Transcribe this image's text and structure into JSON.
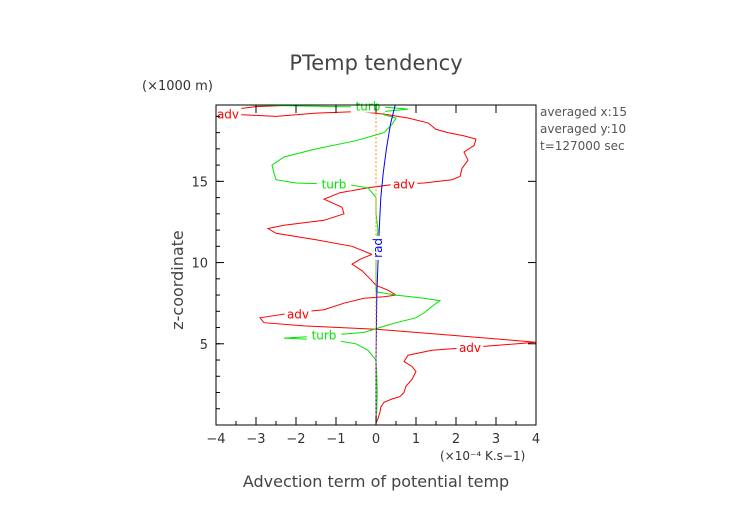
{
  "chart_data": {
    "type": "line",
    "title": "PTemp tendency",
    "y_multiplier_label": "(×1000 m)",
    "ylabel": "z-coordinate",
    "xlabel": "Advection term of potential temp",
    "x_unit_label": "(×10⁻⁴ K.s−1)",
    "xlim": [
      -4,
      4
    ],
    "ylim": [
      0,
      19.7
    ],
    "x_ticks": [
      "−4",
      "−3",
      "−2",
      "−1",
      "0",
      "1",
      "2",
      "3",
      "4"
    ],
    "y_ticks": [
      "5",
      "10",
      "15"
    ],
    "annotations": [
      "averaged  x:15",
      "averaged  y:10",
      "t=127000 sec"
    ],
    "series": [
      {
        "name": "adv",
        "color": "#ff0000",
        "labels": [
          {
            "x": -3.7,
            "y": 19.1
          },
          {
            "x": 0.7,
            "y": 14.8
          },
          {
            "x": -1.95,
            "y": 6.8
          },
          {
            "x": 2.35,
            "y": 4.75
          }
        ],
        "points": [
          [
            0,
            0.1
          ],
          [
            0.05,
            0.4
          ],
          [
            0.1,
            0.8
          ],
          [
            0.12,
            1.1
          ],
          [
            0.2,
            1.4
          ],
          [
            0.4,
            1.6
          ],
          [
            0.6,
            1.75
          ],
          [
            0.7,
            2.0
          ],
          [
            0.75,
            2.4
          ],
          [
            0.9,
            2.8
          ],
          [
            1.0,
            3.3
          ],
          [
            0.9,
            3.6
          ],
          [
            0.7,
            3.9
          ],
          [
            0.8,
            4.3
          ],
          [
            1.4,
            4.6
          ],
          [
            2.5,
            4.8
          ],
          [
            4.0,
            5.1
          ],
          [
            3.0,
            5.3
          ],
          [
            1.5,
            5.6
          ],
          [
            0,
            5.9
          ],
          [
            -1.8,
            6.1
          ],
          [
            -2.8,
            6.3
          ],
          [
            -2.9,
            6.6
          ],
          [
            -2.1,
            6.9
          ],
          [
            -1.3,
            7.1
          ],
          [
            -0.8,
            7.5
          ],
          [
            -0.3,
            7.8
          ],
          [
            0.2,
            7.9
          ],
          [
            0.5,
            8.0
          ],
          [
            0.3,
            8.3
          ],
          [
            0,
            8.6
          ],
          [
            -0.15,
            9.0
          ],
          [
            -0.35,
            9.5
          ],
          [
            -0.6,
            9.9
          ],
          [
            -0.4,
            10.2
          ],
          [
            -0.1,
            10.5
          ],
          [
            -0.6,
            11.0
          ],
          [
            -1.5,
            11.4
          ],
          [
            -2.5,
            11.8
          ],
          [
            -2.7,
            12.1
          ],
          [
            -2.3,
            12.3
          ],
          [
            -1.3,
            12.6
          ],
          [
            -0.8,
            13.0
          ],
          [
            -0.85,
            13.4
          ],
          [
            -1.3,
            13.9
          ],
          [
            -0.9,
            14.3
          ],
          [
            -0.2,
            14.6
          ],
          [
            0.4,
            14.8
          ],
          [
            1.2,
            14.9
          ],
          [
            1.9,
            15.1
          ],
          [
            2.1,
            15.3
          ],
          [
            2.15,
            15.8
          ],
          [
            2.3,
            16.3
          ],
          [
            2.2,
            16.8
          ],
          [
            2.45,
            17.2
          ],
          [
            2.5,
            17.6
          ],
          [
            2.2,
            17.8
          ],
          [
            1.8,
            18.0
          ],
          [
            1.5,
            18.2
          ],
          [
            1.3,
            18.6
          ],
          [
            0.8,
            18.9
          ],
          [
            0.3,
            19.1
          ],
          [
            -0.4,
            19.3
          ],
          [
            -1.5,
            19.2
          ],
          [
            -2.5,
            19.0
          ],
          [
            -3.35,
            19.1
          ],
          [
            -3.5,
            19.45
          ],
          [
            -3.0,
            19.6
          ],
          [
            -2.0,
            19.7
          ]
        ]
      },
      {
        "name": "turb",
        "color": "#00e600",
        "labels": [
          {
            "x": -0.2,
            "y": 19.6
          },
          {
            "x": -1.05,
            "y": 14.8
          },
          {
            "x": -1.3,
            "y": 5.5
          }
        ],
        "points": [
          [
            0,
            0.1
          ],
          [
            0.02,
            1.0
          ],
          [
            0.03,
            2.0
          ],
          [
            0.02,
            3.0
          ],
          [
            0,
            4.0
          ],
          [
            -0.2,
            4.6
          ],
          [
            -0.5,
            5.0
          ],
          [
            -1.0,
            5.2
          ],
          [
            -2.3,
            5.35
          ],
          [
            -1.3,
            5.5
          ],
          [
            -0.3,
            5.7
          ],
          [
            0.1,
            6.0
          ],
          [
            0.5,
            6.3
          ],
          [
            1.0,
            6.6
          ],
          [
            1.2,
            6.9
          ],
          [
            1.4,
            7.3
          ],
          [
            1.6,
            7.65
          ],
          [
            1.2,
            7.8
          ],
          [
            0.5,
            8.0
          ],
          [
            0,
            8.2
          ],
          [
            0,
            9.0
          ],
          [
            0,
            10.0
          ],
          [
            0,
            11.0
          ],
          [
            0.05,
            12.0
          ],
          [
            0,
            13.0
          ],
          [
            0,
            14.0
          ],
          [
            -0.2,
            14.6
          ],
          [
            -0.7,
            14.8
          ],
          [
            -2.0,
            14.9
          ],
          [
            -2.5,
            15.1
          ],
          [
            -2.55,
            15.5
          ],
          [
            -2.6,
            16.0
          ],
          [
            -2.3,
            16.5
          ],
          [
            -1.5,
            17.0
          ],
          [
            -0.5,
            17.5
          ],
          [
            0.2,
            18.0
          ],
          [
            0.4,
            18.5
          ],
          [
            0.5,
            18.9
          ],
          [
            0.2,
            19.1
          ],
          [
            0.2,
            19.3
          ],
          [
            0.8,
            19.45
          ],
          [
            0.3,
            19.55
          ],
          [
            -1.0,
            19.6
          ],
          [
            -3.2,
            19.7
          ]
        ]
      },
      {
        "name": "rad",
        "color": "#0000ff",
        "labels": [
          {
            "x": 0.05,
            "y": 10.9
          }
        ],
        "points": [
          [
            0,
            0.1
          ],
          [
            0,
            2.0
          ],
          [
            0,
            4.0
          ],
          [
            0.01,
            6.0
          ],
          [
            0.02,
            8.0
          ],
          [
            0.05,
            10.0
          ],
          [
            0.08,
            12.0
          ],
          [
            0.12,
            14.0
          ],
          [
            0.18,
            15.5
          ],
          [
            0.26,
            17.0
          ],
          [
            0.36,
            18.5
          ],
          [
            0.48,
            19.7
          ]
        ]
      },
      {
        "name": "",
        "color": "#ff8c00",
        "dashed": true,
        "points": [
          [
            0,
            0.1
          ],
          [
            0,
            19.7
          ]
        ]
      }
    ]
  }
}
